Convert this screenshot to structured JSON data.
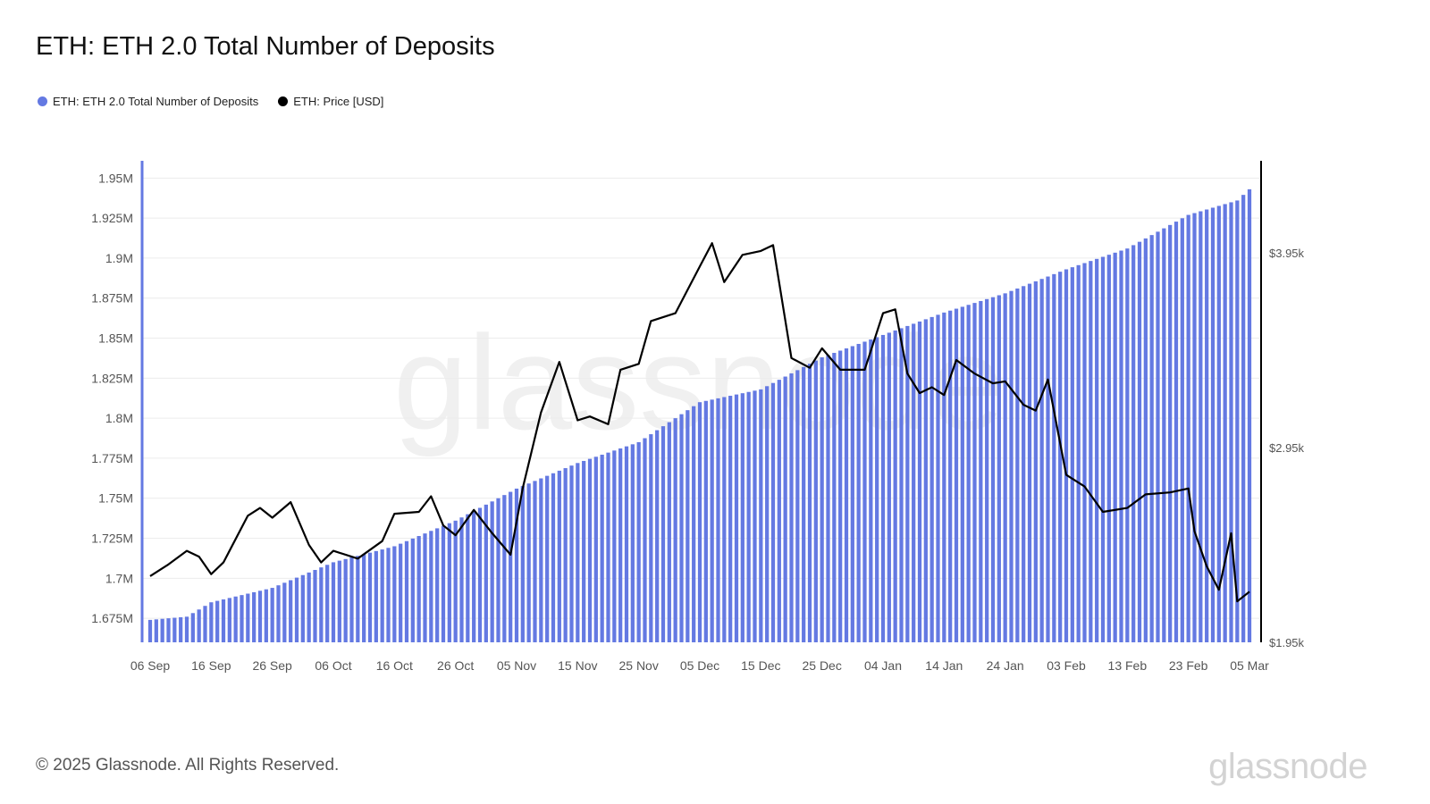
{
  "title": "ETH: ETH 2.0 Total Number of Deposits",
  "legend": [
    {
      "label": "ETH: ETH 2.0 Total Number of Deposits",
      "color": "#6479e2"
    },
    {
      "label": "ETH: Price [USD]",
      "color": "#000000"
    }
  ],
  "footer": "© 2025 Glassnode. All Rights Reserved.",
  "brand": "glassnode",
  "watermark": "glassnode",
  "chart_data": {
    "type": "bar+line",
    "x_start": "2024-09-06",
    "x_end": "2025-03-05",
    "x_ticks": [
      "06 Sep",
      "16 Sep",
      "26 Sep",
      "06 Oct",
      "16 Oct",
      "26 Oct",
      "05 Nov",
      "15 Nov",
      "25 Nov",
      "05 Dec",
      "15 Dec",
      "25 Dec",
      "04 Jan",
      "14 Jan",
      "24 Jan",
      "03 Feb",
      "13 Feb",
      "23 Feb",
      "05 Mar"
    ],
    "left_axis": {
      "ticks": [
        "1.675M",
        "1.7M",
        "1.725M",
        "1.75M",
        "1.775M",
        "1.8M",
        "1.825M",
        "1.85M",
        "1.875M",
        "1.9M",
        "1.925M",
        "1.95M"
      ],
      "range": [
        1660000,
        1958000
      ]
    },
    "right_axis": {
      "ticks": [
        "$1.95k",
        "$2.95k",
        "$3.95k"
      ],
      "range": [
        1950,
        4400
      ]
    },
    "series": [
      {
        "name": "ETH: ETH 2.0 Total Number of Deposits",
        "kind": "bar",
        "color": "#6479e2",
        "keypoints": [
          {
            "date": "2024-09-06",
            "value": 1674000
          },
          {
            "date": "2024-09-12",
            "value": 1676000
          },
          {
            "date": "2024-09-16",
            "value": 1685000
          },
          {
            "date": "2024-09-26",
            "value": 1694000
          },
          {
            "date": "2024-10-06",
            "value": 1710000
          },
          {
            "date": "2024-10-16",
            "value": 1720000
          },
          {
            "date": "2024-10-26",
            "value": 1736000
          },
          {
            "date": "2024-11-05",
            "value": 1756000
          },
          {
            "date": "2024-11-15",
            "value": 1772000
          },
          {
            "date": "2024-11-25",
            "value": 1785000
          },
          {
            "date": "2024-12-05",
            "value": 1810000
          },
          {
            "date": "2024-12-15",
            "value": 1818000
          },
          {
            "date": "2024-12-25",
            "value": 1838000
          },
          {
            "date": "2025-01-04",
            "value": 1852000
          },
          {
            "date": "2025-01-14",
            "value": 1866000
          },
          {
            "date": "2025-01-24",
            "value": 1878000
          },
          {
            "date": "2025-02-03",
            "value": 1893000
          },
          {
            "date": "2025-02-13",
            "value": 1906000
          },
          {
            "date": "2025-02-23",
            "value": 1927000
          },
          {
            "date": "2025-03-03",
            "value": 1936000
          },
          {
            "date": "2025-03-05",
            "value": 1943000
          }
        ]
      },
      {
        "name": "ETH: Price [USD]",
        "kind": "line",
        "color": "#000000",
        "keypoints": [
          {
            "date": "2024-09-06",
            "value": 2290
          },
          {
            "date": "2024-09-09",
            "value": 2350
          },
          {
            "date": "2024-09-12",
            "value": 2420
          },
          {
            "date": "2024-09-14",
            "value": 2390
          },
          {
            "date": "2024-09-16",
            "value": 2300
          },
          {
            "date": "2024-09-18",
            "value": 2360
          },
          {
            "date": "2024-09-22",
            "value": 2600
          },
          {
            "date": "2024-09-24",
            "value": 2640
          },
          {
            "date": "2024-09-26",
            "value": 2590
          },
          {
            "date": "2024-09-29",
            "value": 2670
          },
          {
            "date": "2024-10-02",
            "value": 2450
          },
          {
            "date": "2024-10-04",
            "value": 2360
          },
          {
            "date": "2024-10-06",
            "value": 2420
          },
          {
            "date": "2024-10-10",
            "value": 2380
          },
          {
            "date": "2024-10-14",
            "value": 2470
          },
          {
            "date": "2024-10-16",
            "value": 2610
          },
          {
            "date": "2024-10-20",
            "value": 2620
          },
          {
            "date": "2024-10-22",
            "value": 2700
          },
          {
            "date": "2024-10-24",
            "value": 2550
          },
          {
            "date": "2024-10-26",
            "value": 2500
          },
          {
            "date": "2024-10-29",
            "value": 2630
          },
          {
            "date": "2024-11-01",
            "value": 2510
          },
          {
            "date": "2024-11-04",
            "value": 2400
          },
          {
            "date": "2024-11-06",
            "value": 2740
          },
          {
            "date": "2024-11-09",
            "value": 3130
          },
          {
            "date": "2024-11-12",
            "value": 3390
          },
          {
            "date": "2024-11-15",
            "value": 3090
          },
          {
            "date": "2024-11-17",
            "value": 3110
          },
          {
            "date": "2024-11-20",
            "value": 3070
          },
          {
            "date": "2024-11-22",
            "value": 3350
          },
          {
            "date": "2024-11-25",
            "value": 3380
          },
          {
            "date": "2024-11-27",
            "value": 3600
          },
          {
            "date": "2024-12-01",
            "value": 3640
          },
          {
            "date": "2024-12-05",
            "value": 3880
          },
          {
            "date": "2024-12-07",
            "value": 4000
          },
          {
            "date": "2024-12-09",
            "value": 3800
          },
          {
            "date": "2024-12-12",
            "value": 3940
          },
          {
            "date": "2024-12-15",
            "value": 3960
          },
          {
            "date": "2024-12-17",
            "value": 3990
          },
          {
            "date": "2024-12-20",
            "value": 3410
          },
          {
            "date": "2024-12-23",
            "value": 3360
          },
          {
            "date": "2024-12-25",
            "value": 3460
          },
          {
            "date": "2024-12-28",
            "value": 3350
          },
          {
            "date": "2025-01-01",
            "value": 3350
          },
          {
            "date": "2025-01-04",
            "value": 3640
          },
          {
            "date": "2025-01-06",
            "value": 3660
          },
          {
            "date": "2025-01-08",
            "value": 3330
          },
          {
            "date": "2025-01-10",
            "value": 3230
          },
          {
            "date": "2025-01-12",
            "value": 3260
          },
          {
            "date": "2025-01-14",
            "value": 3220
          },
          {
            "date": "2025-01-16",
            "value": 3400
          },
          {
            "date": "2025-01-19",
            "value": 3330
          },
          {
            "date": "2025-01-22",
            "value": 3280
          },
          {
            "date": "2025-01-24",
            "value": 3290
          },
          {
            "date": "2025-01-27",
            "value": 3170
          },
          {
            "date": "2025-01-29",
            "value": 3140
          },
          {
            "date": "2025-01-31",
            "value": 3300
          },
          {
            "date": "2025-02-03",
            "value": 2810
          },
          {
            "date": "2025-02-06",
            "value": 2750
          },
          {
            "date": "2025-02-09",
            "value": 2620
          },
          {
            "date": "2025-02-13",
            "value": 2640
          },
          {
            "date": "2025-02-16",
            "value": 2710
          },
          {
            "date": "2025-02-20",
            "value": 2720
          },
          {
            "date": "2025-02-23",
            "value": 2740
          },
          {
            "date": "2025-02-24",
            "value": 2520
          },
          {
            "date": "2025-02-26",
            "value": 2340
          },
          {
            "date": "2025-02-28",
            "value": 2220
          },
          {
            "date": "2025-03-02",
            "value": 2510
          },
          {
            "date": "2025-03-03",
            "value": 2160
          },
          {
            "date": "2025-03-05",
            "value": 2210
          }
        ]
      }
    ]
  }
}
